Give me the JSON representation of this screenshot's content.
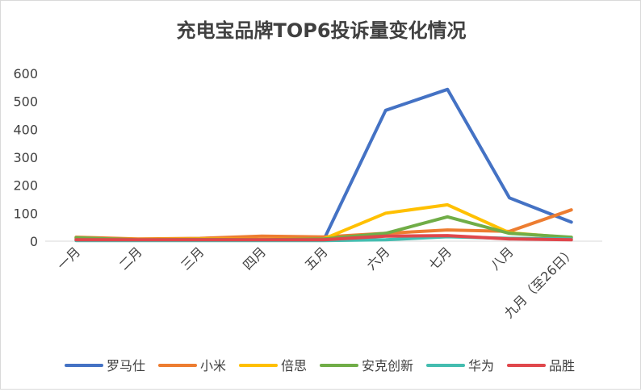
{
  "chart_data": {
    "type": "line",
    "title": "充电宝品牌TOP6投诉量变化情况",
    "xlabel": "",
    "ylabel": "",
    "ylim": [
      0,
      600
    ],
    "yticks": [
      0,
      100,
      200,
      300,
      400,
      500,
      600
    ],
    "grid": false,
    "legend_position": "bottom",
    "categories": [
      "一月",
      "二月",
      "三月",
      "四月",
      "五月",
      "六月",
      "七月",
      "八月",
      "九月（至26日）"
    ],
    "series": [
      {
        "name": "罗马仕",
        "color": "#4472C4",
        "values": [
          5,
          5,
          5,
          5,
          5,
          468,
          543,
          155,
          68
        ]
      },
      {
        "name": "小米",
        "color": "#ED7D31",
        "values": [
          14,
          8,
          10,
          18,
          15,
          28,
          40,
          35,
          112
        ]
      },
      {
        "name": "倍思",
        "color": "#FFC000",
        "values": [
          10,
          6,
          8,
          6,
          8,
          100,
          130,
          30,
          12
        ]
      },
      {
        "name": "安克创新",
        "color": "#70AD47",
        "values": [
          12,
          5,
          6,
          5,
          8,
          28,
          87,
          28,
          14
        ]
      },
      {
        "name": "华为",
        "color": "#44BDB0",
        "values": [
          2,
          2,
          2,
          2,
          2,
          5,
          16,
          10,
          8
        ]
      },
      {
        "name": "品胜",
        "color": "#E0474C",
        "values": [
          5,
          5,
          5,
          5,
          5,
          18,
          20,
          8,
          5
        ]
      }
    ]
  }
}
